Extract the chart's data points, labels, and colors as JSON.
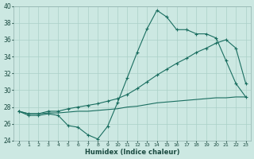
{
  "xlabel": "Humidex (Indice chaleur)",
  "bg_color": "#cce8e2",
  "grid_color": "#aad0c8",
  "line_color": "#1a6e60",
  "x": [
    0,
    1,
    2,
    3,
    4,
    5,
    6,
    7,
    8,
    9,
    10,
    11,
    12,
    13,
    14,
    15,
    16,
    17,
    18,
    19,
    20,
    21,
    22,
    23
  ],
  "line_main": [
    27.5,
    27.0,
    27.0,
    27.2,
    27.0,
    25.8,
    25.6,
    24.7,
    24.2,
    25.7,
    28.5,
    31.5,
    34.5,
    37.3,
    39.5,
    38.7,
    37.2,
    37.2,
    36.7,
    36.7,
    36.2,
    33.5,
    30.8,
    29.2
  ],
  "line_upper": [
    27.5,
    27.2,
    27.2,
    27.5,
    27.5,
    27.8,
    28.0,
    28.2,
    28.4,
    28.7,
    29.0,
    29.5,
    30.2,
    31.0,
    31.8,
    32.5,
    33.2,
    33.8,
    34.5,
    35.0,
    35.6,
    36.0,
    35.0,
    30.8
  ],
  "line_lower": [
    27.5,
    27.2,
    27.2,
    27.3,
    27.3,
    27.4,
    27.5,
    27.5,
    27.6,
    27.7,
    27.8,
    28.0,
    28.1,
    28.3,
    28.5,
    28.6,
    28.7,
    28.8,
    28.9,
    29.0,
    29.1,
    29.1,
    29.2,
    29.2
  ],
  "ylim": [
    24,
    40
  ],
  "yticks": [
    24,
    26,
    28,
    30,
    32,
    34,
    36,
    38,
    40
  ],
  "xlim": [
    -0.5,
    23.5
  ]
}
